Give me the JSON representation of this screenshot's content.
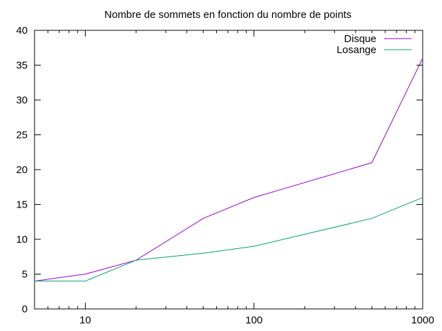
{
  "chart_data": {
    "type": "line",
    "title": "Nombre de sommets en fonction du nombre de points",
    "xlabel": "",
    "ylabel": "",
    "xscale": "log",
    "xlim": [
      5,
      1000
    ],
    "ylim": [
      0,
      40
    ],
    "x_ticks": [
      10,
      100,
      1000
    ],
    "x_tick_labels": [
      "10",
      "100",
      "1000"
    ],
    "y_ticks": [
      0,
      5,
      10,
      15,
      20,
      25,
      30,
      35,
      40
    ],
    "y_tick_labels": [
      "0",
      "5",
      "10",
      "15",
      "20",
      "25",
      "30",
      "35",
      "40"
    ],
    "grid": false,
    "legend_position": "top-right",
    "x": [
      5,
      10,
      20,
      50,
      100,
      500,
      1000
    ],
    "series": [
      {
        "name": "Disque",
        "color": "#9400d3",
        "values": [
          4,
          5,
          7,
          13,
          16,
          21,
          36
        ]
      },
      {
        "name": "Losange",
        "color": "#009e73",
        "values": [
          4,
          4,
          7,
          8,
          9,
          13,
          16
        ]
      }
    ]
  }
}
